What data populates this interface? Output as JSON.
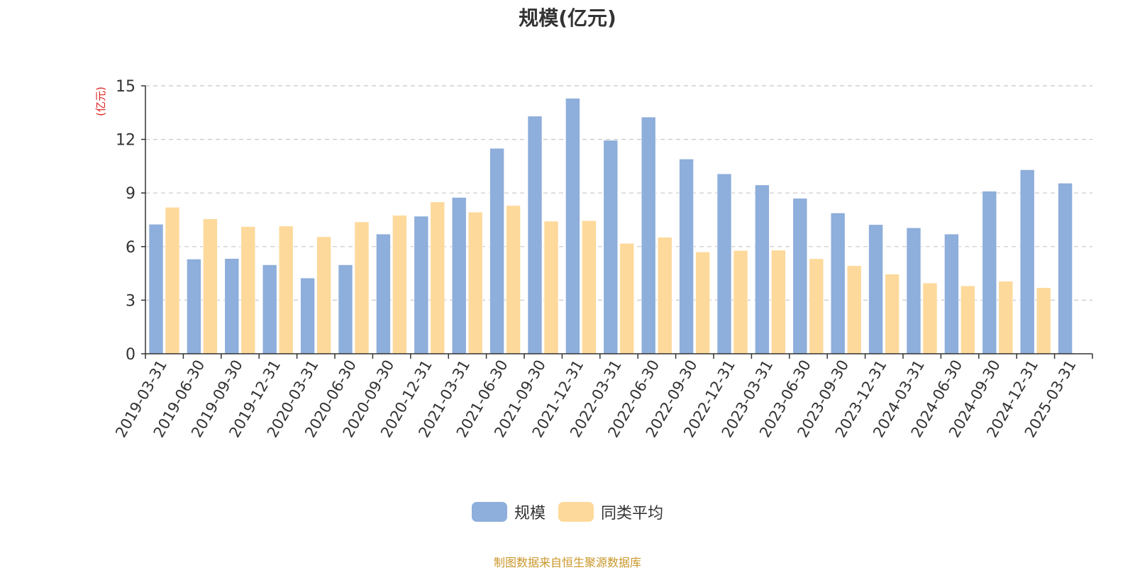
{
  "chart_data": {
    "type": "bar",
    "title": "规模(亿元)",
    "ylabel": "(亿元)",
    "xlabel": "",
    "ylim": [
      0,
      15
    ],
    "yticks": [
      0,
      3,
      6,
      9,
      12,
      15
    ],
    "grid": true,
    "legend_position": "bottom-center",
    "categories": [
      "2019-03-31",
      "2019-06-30",
      "2019-09-30",
      "2019-12-31",
      "2020-03-31",
      "2020-06-30",
      "2020-09-30",
      "2020-12-31",
      "2021-03-31",
      "2021-06-30",
      "2021-09-30",
      "2021-12-31",
      "2022-03-31",
      "2022-06-30",
      "2022-09-30",
      "2022-12-31",
      "2023-03-31",
      "2023-06-30",
      "2023-09-30",
      "2023-12-31",
      "2024-03-31",
      "2024-06-30",
      "2024-09-30",
      "2024-12-31",
      "2025-03-31"
    ],
    "series": [
      {
        "name": "规模",
        "color": "#8eaedb",
        "values": [
          7.25,
          5.3,
          5.33,
          4.98,
          4.24,
          4.98,
          6.7,
          7.7,
          8.75,
          11.5,
          13.3,
          14.3,
          11.95,
          13.25,
          10.9,
          10.07,
          9.45,
          8.7,
          7.88,
          7.23,
          7.05,
          6.7,
          9.1,
          10.3,
          9.55
        ]
      },
      {
        "name": "同类平均",
        "color": "#fdd99b",
        "values": [
          8.2,
          7.55,
          7.12,
          7.15,
          6.55,
          7.38,
          7.75,
          8.5,
          7.93,
          8.3,
          7.42,
          7.45,
          6.18,
          6.52,
          5.7,
          5.78,
          5.8,
          5.32,
          4.93,
          4.46,
          3.96,
          3.8,
          4.06,
          3.7,
          null
        ]
      }
    ]
  },
  "source_note": "制图数据来自恒生聚源数据库"
}
